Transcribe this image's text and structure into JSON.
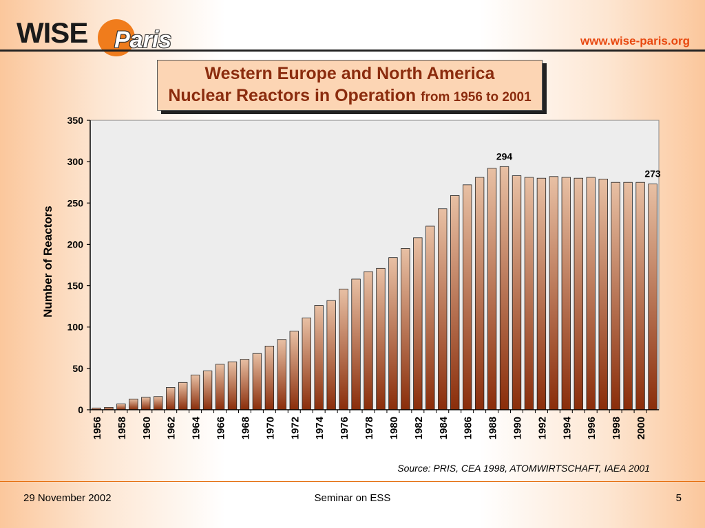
{
  "header": {
    "logo_wise": "WISE",
    "logo_paris": "Paris",
    "url": "www.wise-paris.org"
  },
  "slide": {
    "title_line1": "Western Europe and North America",
    "title_line2_main": "Nuclear Reactors in Operation",
    "title_line2_sub": "from 1956 to 2001",
    "source": "Source: PRIS, CEA 1998, ATOMWIRTSCHAFT, IAEA 2001"
  },
  "footer": {
    "date": "29 November 2002",
    "center": "Seminar on ESS",
    "page": "5"
  },
  "chart_data": {
    "type": "bar",
    "title": "",
    "xlabel": "",
    "ylabel": "Number of Reactors",
    "ylim": [
      0,
      350
    ],
    "yticks": [
      0,
      50,
      100,
      150,
      200,
      250,
      300,
      350
    ],
    "grid": false,
    "categories": [
      "1956",
      "1957",
      "1958",
      "1959",
      "1960",
      "1961",
      "1962",
      "1963",
      "1964",
      "1965",
      "1966",
      "1967",
      "1968",
      "1969",
      "1970",
      "1971",
      "1972",
      "1973",
      "1974",
      "1975",
      "1976",
      "1977",
      "1978",
      "1979",
      "1980",
      "1981",
      "1982",
      "1983",
      "1984",
      "1985",
      "1986",
      "1987",
      "1988",
      "1989",
      "1990",
      "1991",
      "1992",
      "1993",
      "1994",
      "1995",
      "1996",
      "1997",
      "1998",
      "1999",
      "2000",
      "2001"
    ],
    "xtick_labels": [
      "1956",
      "1958",
      "1960",
      "1962",
      "1964",
      "1966",
      "1968",
      "1970",
      "1972",
      "1974",
      "1976",
      "1978",
      "1980",
      "1982",
      "1984",
      "1986",
      "1988",
      "1990",
      "1992",
      "1994",
      "1996",
      "1998",
      "2000"
    ],
    "values": [
      2,
      3,
      7,
      13,
      15,
      16,
      27,
      33,
      42,
      47,
      55,
      58,
      61,
      68,
      77,
      85,
      95,
      111,
      126,
      132,
      146,
      158,
      167,
      171,
      184,
      195,
      208,
      222,
      243,
      259,
      272,
      281,
      292,
      294,
      283,
      281,
      280,
      282,
      281,
      280,
      281,
      279,
      275,
      275,
      275,
      273
    ],
    "data_labels": [
      {
        "category": "1989",
        "text": "294"
      },
      {
        "category": "2001",
        "text": "273"
      }
    ],
    "colors": {
      "bar_top": "#e8c0a4",
      "bar_bottom": "#8a2d0a",
      "bar_stroke": "#222222",
      "plot_background": "#ededed",
      "title_box": "#fcd5b4",
      "title_text": "#8b2c0e",
      "accent": "#e8480f"
    }
  }
}
